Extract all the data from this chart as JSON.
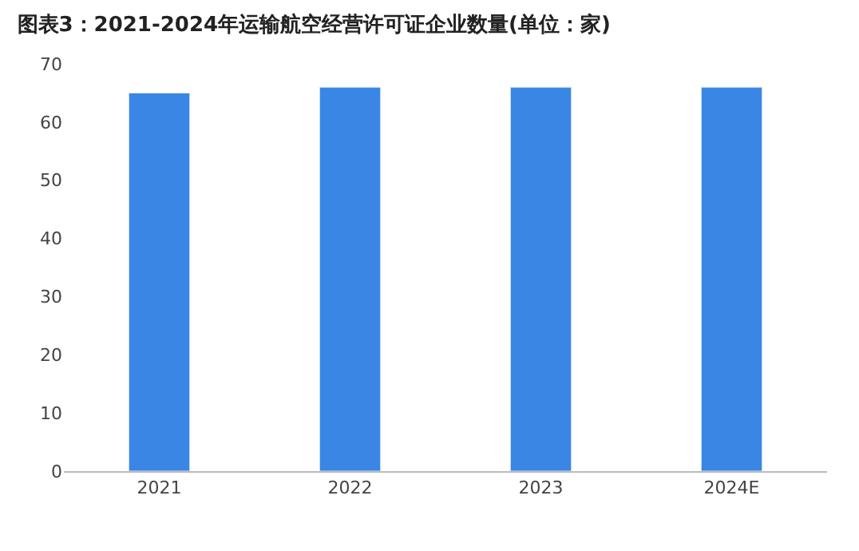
{
  "chart_data": {
    "type": "bar",
    "title": "图表3：2021-2024年运输航空经营许可证企业数量(单位：家)",
    "categories": [
      "2021",
      "2022",
      "2023",
      "2024E"
    ],
    "values": [
      65,
      66,
      66,
      66
    ],
    "color": "#3a86e4",
    "ylim": [
      0,
      70
    ],
    "yticks": [
      0,
      10,
      20,
      30,
      40,
      50,
      60,
      70
    ],
    "grid": false
  }
}
